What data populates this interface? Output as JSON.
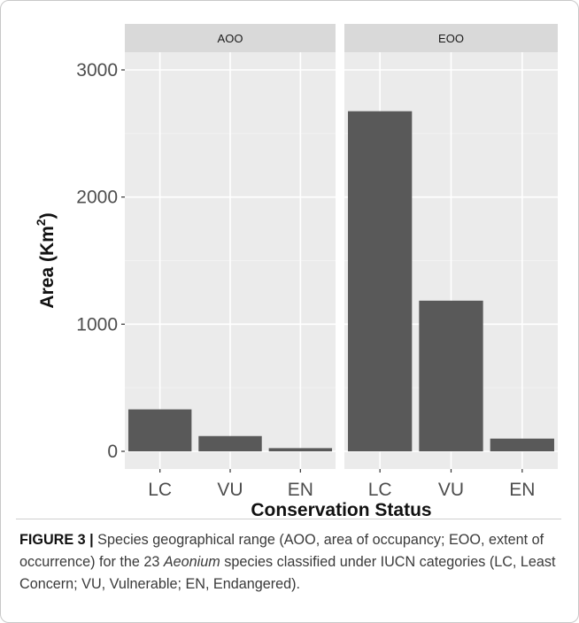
{
  "chart_data": {
    "type": "bar",
    "facets": [
      "AOO",
      "EOO"
    ],
    "categories": [
      "LC",
      "VU",
      "EN"
    ],
    "series": [
      {
        "facet": "AOO",
        "values": [
          330,
          120,
          25
        ]
      },
      {
        "facet": "EOO",
        "values": [
          2675,
          1185,
          100
        ]
      }
    ],
    "ylabel_main": "Area (Km",
    "ylabel_sup": "2",
    "ylabel_close": ")",
    "xlabel": "Conservation Status",
    "yticks": [
      0,
      1000,
      2000,
      3000
    ],
    "ylim": [
      0,
      3350
    ],
    "grid": true,
    "colors": {
      "panel": "#ebebeb",
      "strip": "#d9d9d9",
      "bar": "#595959",
      "grid_major": "#ffffff",
      "grid_minor": "#f4f4f4"
    }
  },
  "caption": {
    "label": "FIGURE 3 |",
    "text_before": " Species geographical range (AOO, area of occupancy; EOO, extent of occurrence) for the 23 ",
    "italic": "Aeonium",
    "text_after": " species classified under IUCN categories (LC, Least Concern; VU, Vulnerable; EN, Endangered)."
  }
}
